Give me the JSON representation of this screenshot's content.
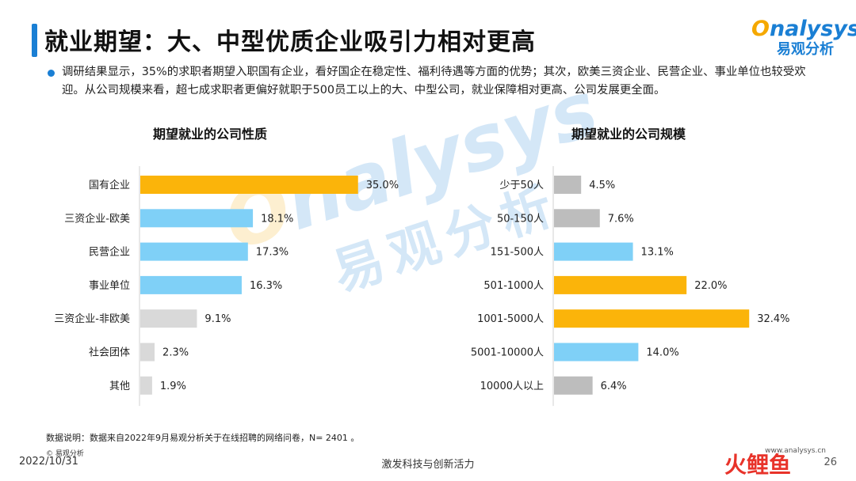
{
  "title": "就业期望：大、中型优质企业吸引力相对更高",
  "logo": {
    "en_o": "O",
    "en_rest": "nalysys",
    "cn": "易观分析"
  },
  "summary": "调研结果显示，35%的求职者期望入职国有企业，看好国企在稳定性、福利待遇等方面的优势；其次，欧美三资企业、民营企业、事业单位也较受欢迎。从公司规模来看，超七成求职者更偏好就职于500员工以上的大、中型公司，就业保障相对更高、公司发展更全面。",
  "watermark": {
    "en_o": "O",
    "en_rest": "nalysys",
    "cn": "易观分析"
  },
  "chart_data": [
    {
      "type": "bar",
      "orientation": "horizontal",
      "title": "期望就业的公司性质",
      "categories": [
        "国有企业",
        "三资企业-欧美",
        "民营企业",
        "事业单位",
        "三资企业-非欧美",
        "社会团体",
        "其他"
      ],
      "values": [
        35.0,
        18.1,
        17.3,
        16.3,
        9.1,
        2.3,
        1.9
      ],
      "value_labels": [
        "35.0%",
        "18.1%",
        "17.3%",
        "16.3%",
        "9.1%",
        "2.3%",
        "1.9%"
      ],
      "bar_colors": [
        "#fbb40a",
        "#7fd0f7",
        "#7fd0f7",
        "#7fd0f7",
        "#d9d9d9",
        "#d9d9d9",
        "#d9d9d9"
      ],
      "xlim": [
        0,
        40
      ],
      "unit": "%"
    },
    {
      "type": "bar",
      "orientation": "horizontal",
      "title": "期望就业的公司规模",
      "categories": [
        "少于50人",
        "50-150人",
        "151-500人",
        "501-1000人",
        "1001-5000人",
        "5001-10000人",
        "10000人以上"
      ],
      "values": [
        4.5,
        7.6,
        13.1,
        22.0,
        32.4,
        14.0,
        6.4
      ],
      "value_labels": [
        "4.5%",
        "7.6%",
        "13.1%",
        "22.0%",
        "32.4%",
        "14.0%",
        "6.4%"
      ],
      "bar_colors": [
        "#bdbdbd",
        "#bdbdbd",
        "#7fd0f7",
        "#fbb40a",
        "#fbb40a",
        "#7fd0f7",
        "#bdbdbd"
      ],
      "xlim": [
        0,
        40
      ],
      "unit": "%"
    }
  ],
  "footer": {
    "note": "数据说明：数据来自2022年9月易观分析关于在线招聘的网络问卷，N=  2401 。",
    "copyright": "© 易观分析",
    "date": "2022/10/31",
    "slogan": "激发科技与创新活力",
    "site": "www.analysys.cn",
    "page": "26",
    "brand_logo": "火鲤鱼"
  }
}
